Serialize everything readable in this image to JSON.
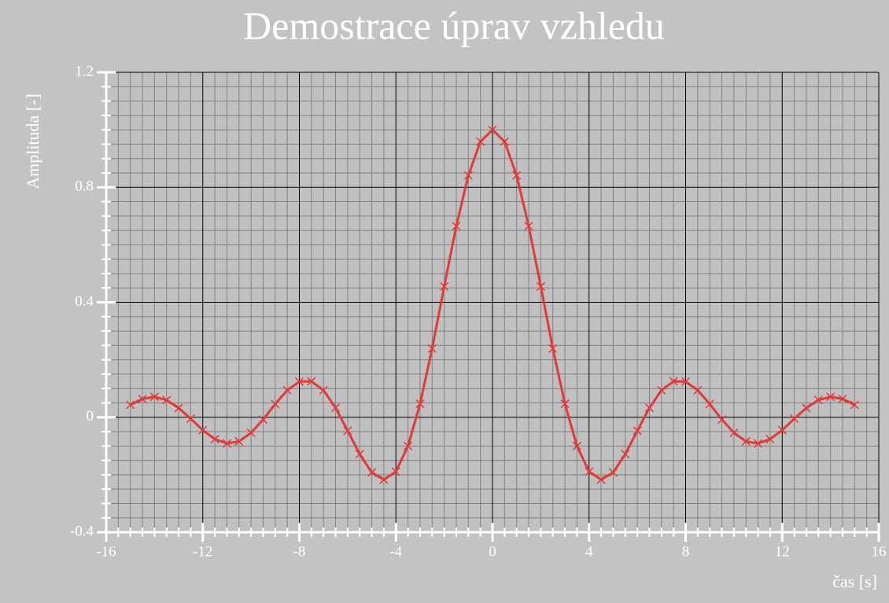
{
  "chart_data": {
    "type": "line",
    "title": "Demostrace úprav vzhledu",
    "x_label": "čas [s]",
    "y_label": "Amplituda [-]",
    "xlim": [
      -16,
      16
    ],
    "ylim": [
      -0.4,
      1.2
    ],
    "xticks": [
      -16,
      -12,
      -8,
      -4,
      0,
      4,
      8,
      12,
      16
    ],
    "yticks": [
      -0.4,
      0,
      0.4,
      0.8,
      1.2
    ],
    "minor_divisions": 8,
    "grid": true,
    "x": [
      -15,
      -14.5,
      -14,
      -13.5,
      -13,
      -12.5,
      -12,
      -11.5,
      -11,
      -10.5,
      -10,
      -9.5,
      -9,
      -8.5,
      -8,
      -7.5,
      -7,
      -6.5,
      -6,
      -5.5,
      -5,
      -4.5,
      -4,
      -3.5,
      -3,
      -2.5,
      -2,
      -1.5,
      -1,
      -0.5,
      0,
      0.5,
      1,
      1.5,
      2,
      2.5,
      3,
      3.5,
      4,
      4.5,
      5,
      5.5,
      6,
      6.5,
      7,
      7.5,
      8,
      8.5,
      9,
      9.5,
      10,
      10.5,
      11,
      11.5,
      12,
      12.5,
      13,
      13.5,
      14,
      14.5,
      15
    ],
    "series": [
      {
        "color": "#e03a3a",
        "values": [
          0.043,
          0.064,
          0.071,
          0.06,
          0.032,
          -0.005,
          -0.045,
          -0.076,
          -0.091,
          -0.084,
          -0.054,
          -0.008,
          0.046,
          0.094,
          0.124,
          0.125,
          0.094,
          0.033,
          -0.047,
          -0.128,
          -0.192,
          -0.217,
          -0.189,
          -0.1,
          0.047,
          0.239,
          0.455,
          0.665,
          0.8415,
          0.959,
          1,
          0.959,
          0.8415,
          0.665,
          0.455,
          0.239,
          0.047,
          -0.1,
          -0.189,
          -0.217,
          -0.192,
          -0.128,
          -0.047,
          0.033,
          0.094,
          0.125,
          0.124,
          0.094,
          0.046,
          -0.008,
          -0.054,
          -0.084,
          -0.091,
          -0.076,
          -0.045,
          -0.005,
          0.032,
          0.06,
          0.071,
          0.064,
          0.043
        ]
      }
    ]
  }
}
